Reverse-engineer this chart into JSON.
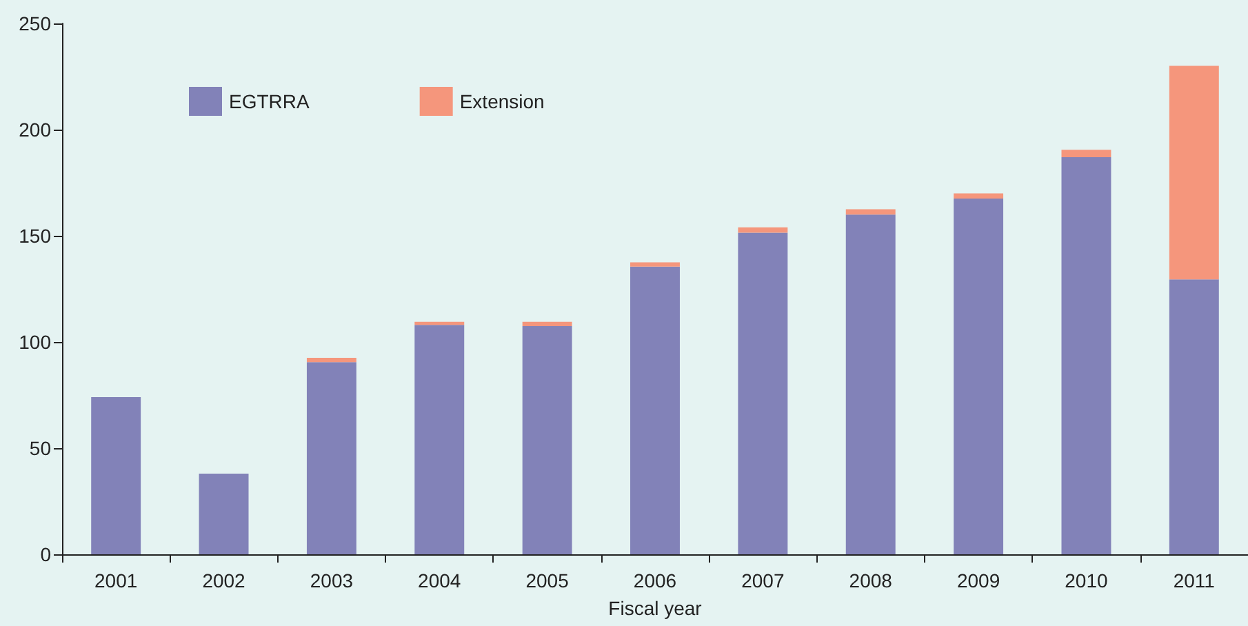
{
  "chart_data": {
    "type": "bar",
    "stacked": true,
    "xlabel": "Fiscal year",
    "categories": [
      "2001",
      "2002",
      "2003",
      "2004",
      "2005",
      "2006",
      "2007",
      "2008",
      "2009",
      "2010",
      "2011"
    ],
    "series": [
      {
        "name": "EGTRRA",
        "color": "#8282b8",
        "values": [
          74,
          38,
          90.5,
          108,
          107.5,
          135.5,
          151.5,
          160,
          167.5,
          187,
          129.5
        ]
      },
      {
        "name": "Extension",
        "color": "#f5967c",
        "values": [
          0,
          0,
          2,
          1.5,
          2,
          2,
          2.5,
          2.5,
          2.5,
          3.5,
          100.5
        ]
      }
    ],
    "ylim": [
      0,
      250
    ],
    "yticks": [
      0,
      50,
      100,
      150,
      200,
      250
    ],
    "grid": false,
    "legend": "top left"
  }
}
